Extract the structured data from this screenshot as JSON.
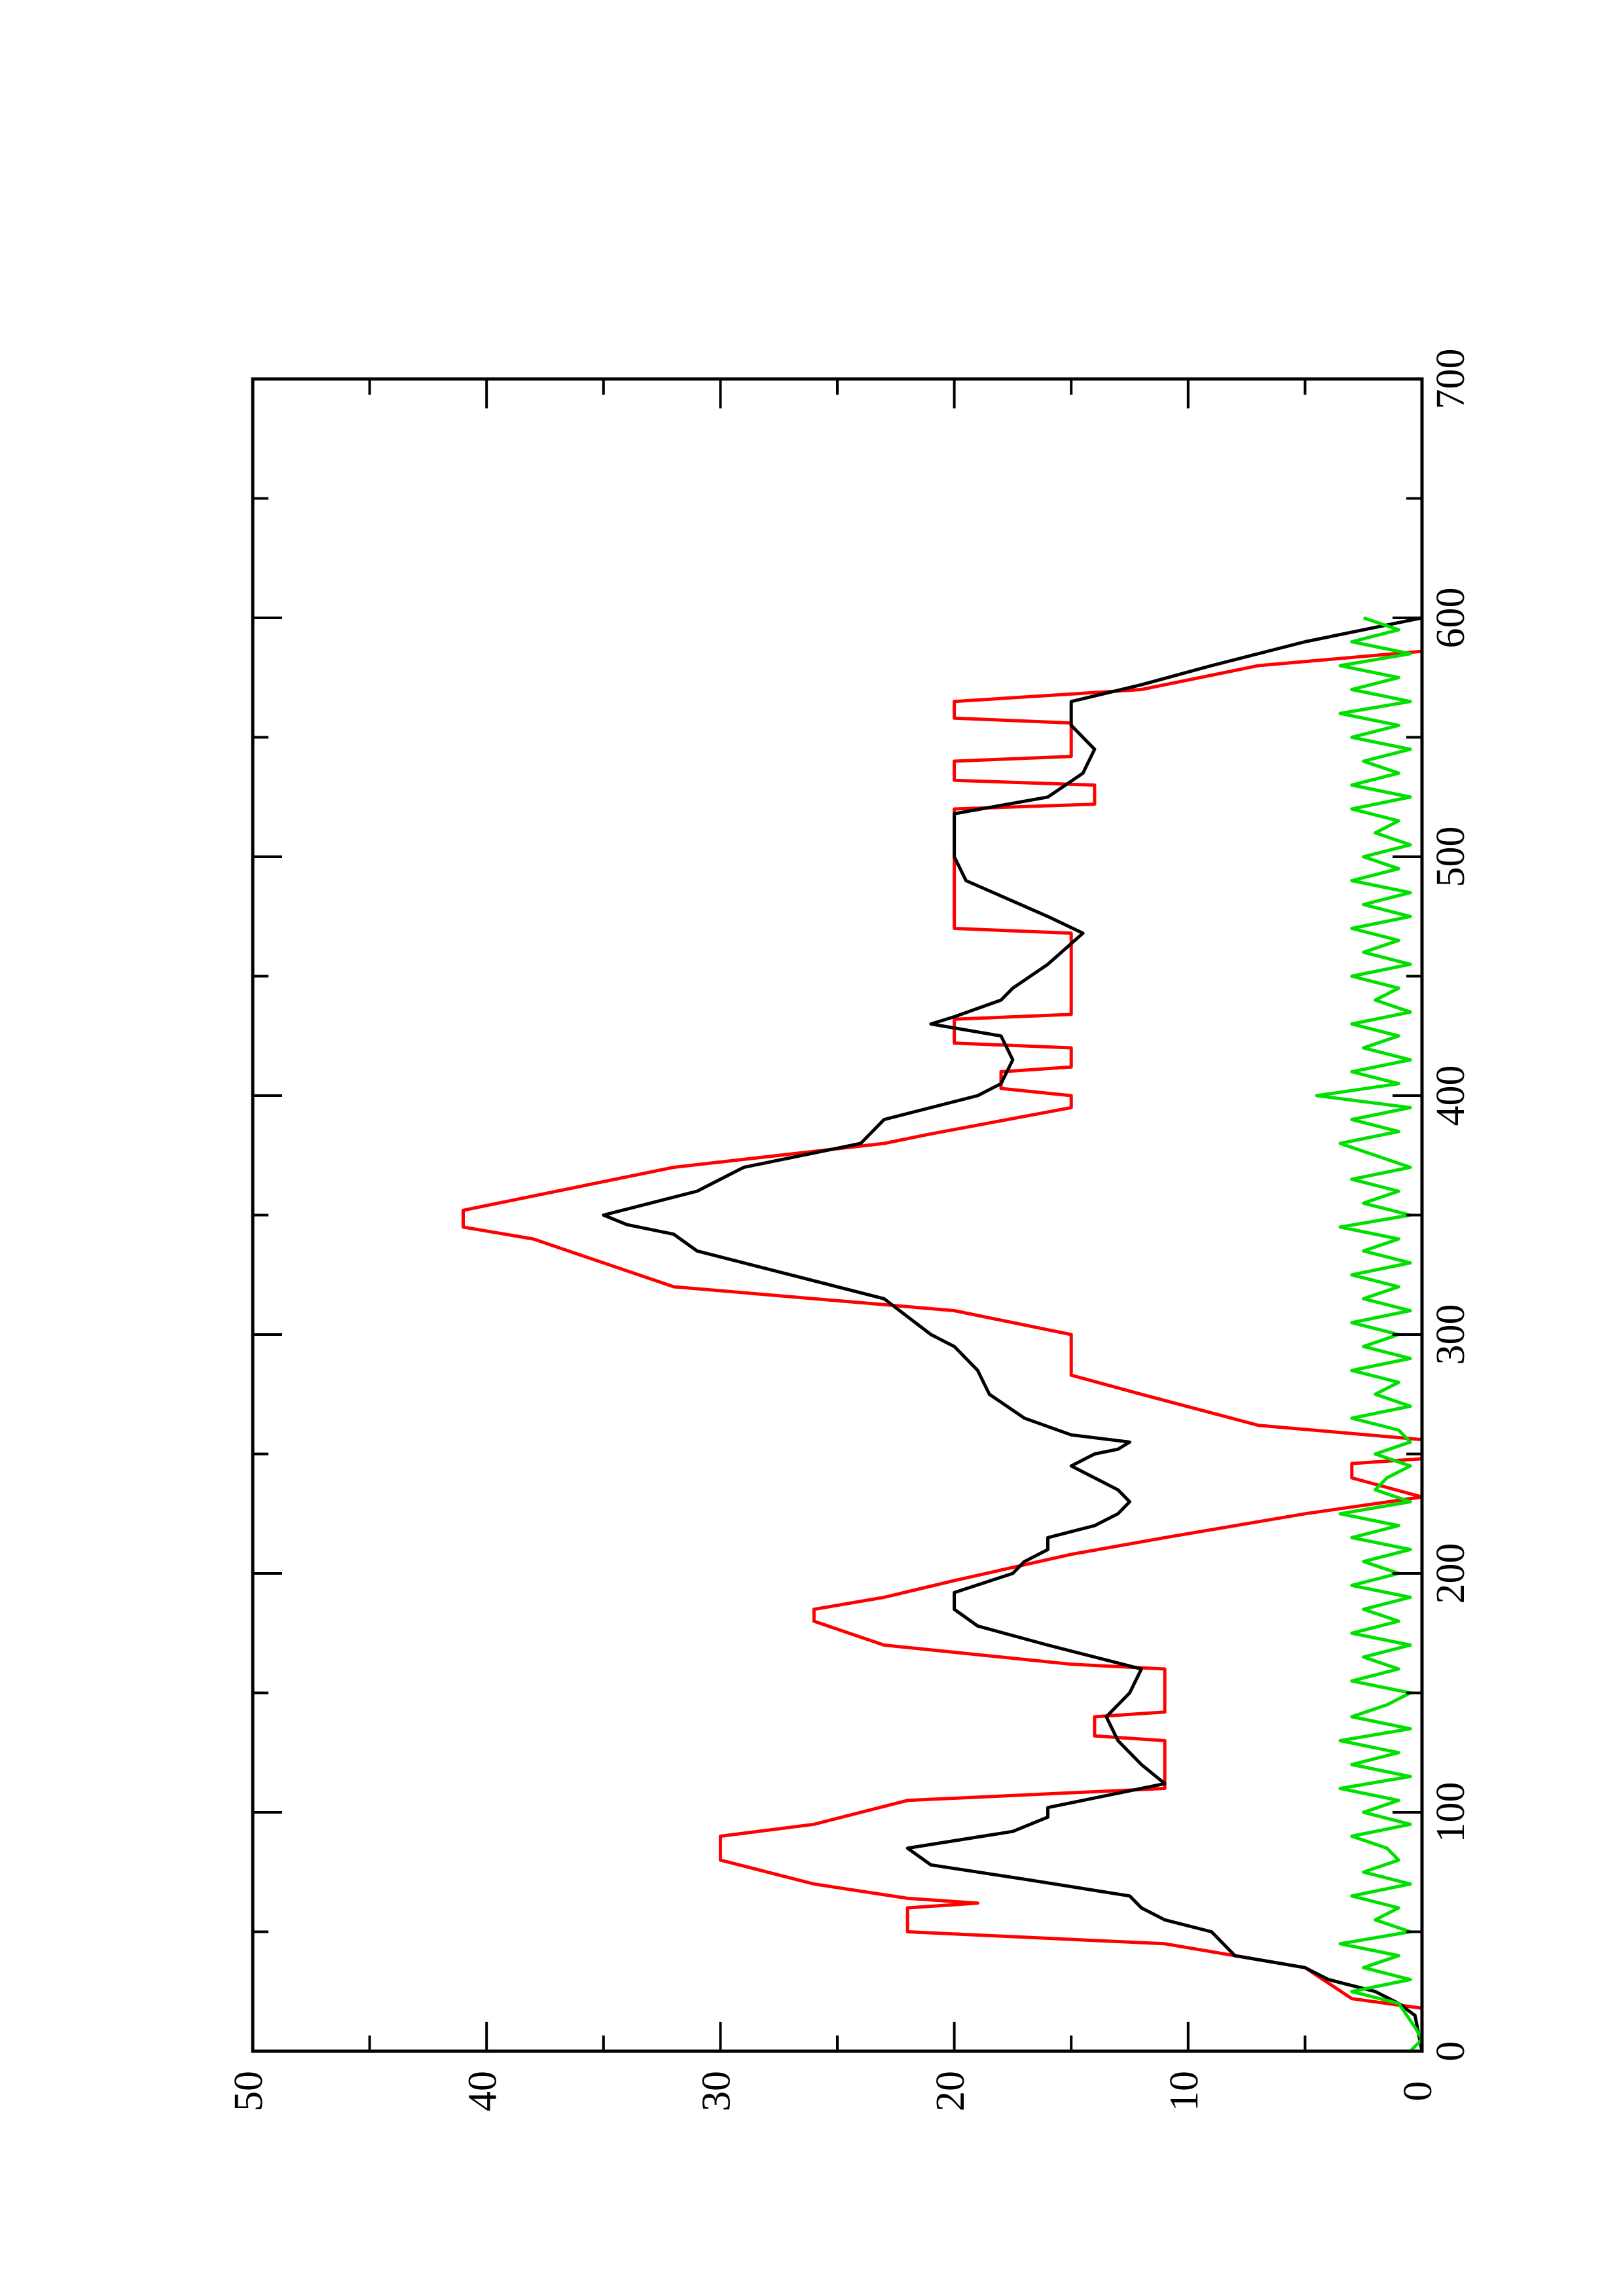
{
  "chart_data": {
    "type": "line",
    "xlim": [
      0,
      700
    ],
    "xticks": [
      0,
      100,
      200,
      300,
      400,
      500,
      600,
      700
    ],
    "xminor": [
      50,
      150,
      250,
      350,
      450,
      550,
      650
    ],
    "ylim": [
      0,
      50
    ],
    "yticks": [
      0,
      10,
      20,
      30,
      40,
      50
    ],
    "yminor": [
      5,
      15,
      25,
      35,
      45
    ],
    "series": [
      {
        "color": "#ff0000",
        "x": [
          18,
          22,
          35,
          45,
          50,
          60,
          62,
          64,
          70,
          80,
          90,
          95,
          105,
          110,
          130,
          132,
          140,
          142,
          160,
          162,
          170,
          180,
          185,
          190,
          197,
          208,
          215,
          225,
          232,
          240,
          246,
          248,
          256,
          262,
          275,
          283,
          300,
          310,
          320,
          340,
          345,
          352,
          358,
          370,
          380,
          384,
          395,
          400,
          403,
          410,
          412,
          420,
          422,
          432,
          434,
          468,
          470,
          520,
          522,
          530,
          532,
          540,
          542,
          556,
          558,
          565,
          570,
          580,
          586
        ],
        "values": [
          0,
          3,
          5,
          11,
          22,
          22,
          19,
          22,
          26,
          30,
          30,
          26,
          22,
          11,
          11,
          14,
          14,
          11,
          11,
          15,
          23,
          26,
          26,
          23,
          20,
          15,
          11,
          5,
          0,
          3,
          3,
          0,
          0,
          7,
          12,
          15,
          15,
          20,
          32,
          38,
          41,
          41,
          38,
          32,
          23,
          21,
          15,
          15,
          18,
          18,
          15,
          15,
          20,
          20,
          15,
          15,
          20,
          20,
          14,
          14,
          20,
          20,
          15,
          15,
          20,
          20,
          12,
          7,
          0
        ]
      },
      {
        "color": "#000000",
        "x": [
          0,
          15,
          20,
          25,
          30,
          35,
          40,
          50,
          55,
          60,
          65,
          72,
          78,
          85,
          92,
          98,
          102,
          108,
          112,
          120,
          130,
          140,
          150,
          160,
          170,
          178,
          185,
          192,
          200,
          205,
          210,
          215,
          220,
          225,
          230,
          235,
          240,
          245,
          250,
          252,
          255,
          258,
          265,
          275,
          285,
          295,
          300,
          315,
          325,
          335,
          342,
          346,
          350,
          355,
          360,
          370,
          380,
          390,
          400,
          405,
          415,
          425,
          430,
          433,
          440,
          445,
          455,
          468,
          475,
          490,
          500,
          510,
          518,
          525,
          535,
          545,
          555,
          565,
          572,
          580,
          590,
          598,
          600
        ],
        "values": [
          0,
          0.3,
          1,
          2,
          4,
          5,
          8,
          9,
          11,
          12,
          12.5,
          17,
          21,
          22,
          17.5,
          16,
          16,
          13,
          11,
          12,
          13,
          13.5,
          12.5,
          12,
          16,
          19,
          20,
          20,
          17.5,
          17,
          16,
          16,
          14,
          13,
          12.5,
          13,
          14,
          15,
          14,
          13,
          12.5,
          15,
          17,
          18.5,
          19,
          20,
          21,
          23,
          27,
          31,
          32,
          34,
          35,
          33,
          31,
          29,
          24,
          23,
          19,
          18,
          17.5,
          18,
          21,
          20,
          18,
          17.5,
          16,
          14.5,
          16,
          19.5,
          20,
          20,
          20,
          16,
          14.5,
          14,
          15,
          15,
          12,
          9,
          5,
          1,
          0
        ]
      },
      {
        "color": "#00e000",
        "x": [
          0,
          5,
          10,
          20,
          25,
          30,
          35,
          40,
          45,
          50,
          55,
          60,
          65,
          70,
          75,
          80,
          85,
          90,
          95,
          100,
          105,
          110,
          115,
          120,
          125,
          130,
          135,
          140,
          145,
          150,
          155,
          160,
          165,
          170,
          175,
          180,
          185,
          190,
          195,
          200,
          205,
          210,
          215,
          220,
          225,
          230,
          235,
          240,
          245,
          250,
          255,
          260,
          265,
          270,
          275,
          280,
          285,
          290,
          295,
          300,
          305,
          310,
          315,
          320,
          325,
          330,
          335,
          340,
          345,
          350,
          355,
          360,
          365,
          370,
          375,
          380,
          385,
          390,
          395,
          400,
          405,
          410,
          415,
          420,
          425,
          430,
          435,
          440,
          445,
          450,
          455,
          460,
          465,
          470,
          475,
          480,
          485,
          490,
          495,
          500,
          505,
          510,
          515,
          520,
          525,
          530,
          535,
          540,
          545,
          550,
          555,
          560,
          565,
          570,
          575,
          580,
          585,
          590,
          595,
          600
        ],
        "values": [
          0.5,
          0,
          0.3,
          1,
          3,
          0.5,
          2.5,
          1,
          3.5,
          0.5,
          2,
          1,
          3,
          0.5,
          2.5,
          1,
          1.5,
          3,
          0.5,
          2.5,
          1,
          3.5,
          0.5,
          3,
          1,
          3.5,
          0.5,
          3,
          1.5,
          0.5,
          3,
          1,
          2.5,
          0.5,
          3,
          1,
          2.5,
          0.5,
          3,
          1,
          2.5,
          0.5,
          3,
          1,
          3.5,
          0.5,
          2,
          1.5,
          0.5,
          2,
          0.5,
          1,
          3,
          0.5,
          2,
          1,
          3,
          0.5,
          2.5,
          1,
          3,
          0.5,
          2.5,
          1,
          3,
          0.5,
          2.5,
          1,
          3.5,
          0.5,
          2.5,
          1,
          3,
          0.5,
          2,
          3.5,
          1,
          3,
          0.5,
          4.5,
          1,
          3,
          0.5,
          2.5,
          1,
          3,
          0.5,
          2,
          1,
          3,
          0.5,
          2.5,
          1,
          3,
          0.5,
          2.5,
          0.5,
          3,
          1,
          2.5,
          0.5,
          2,
          1,
          3,
          0.5,
          3,
          1,
          2.5,
          0.5,
          3,
          1,
          3.5,
          0.5,
          3,
          1,
          3.5,
          0.5,
          3,
          1,
          2.5
        ]
      }
    ]
  }
}
